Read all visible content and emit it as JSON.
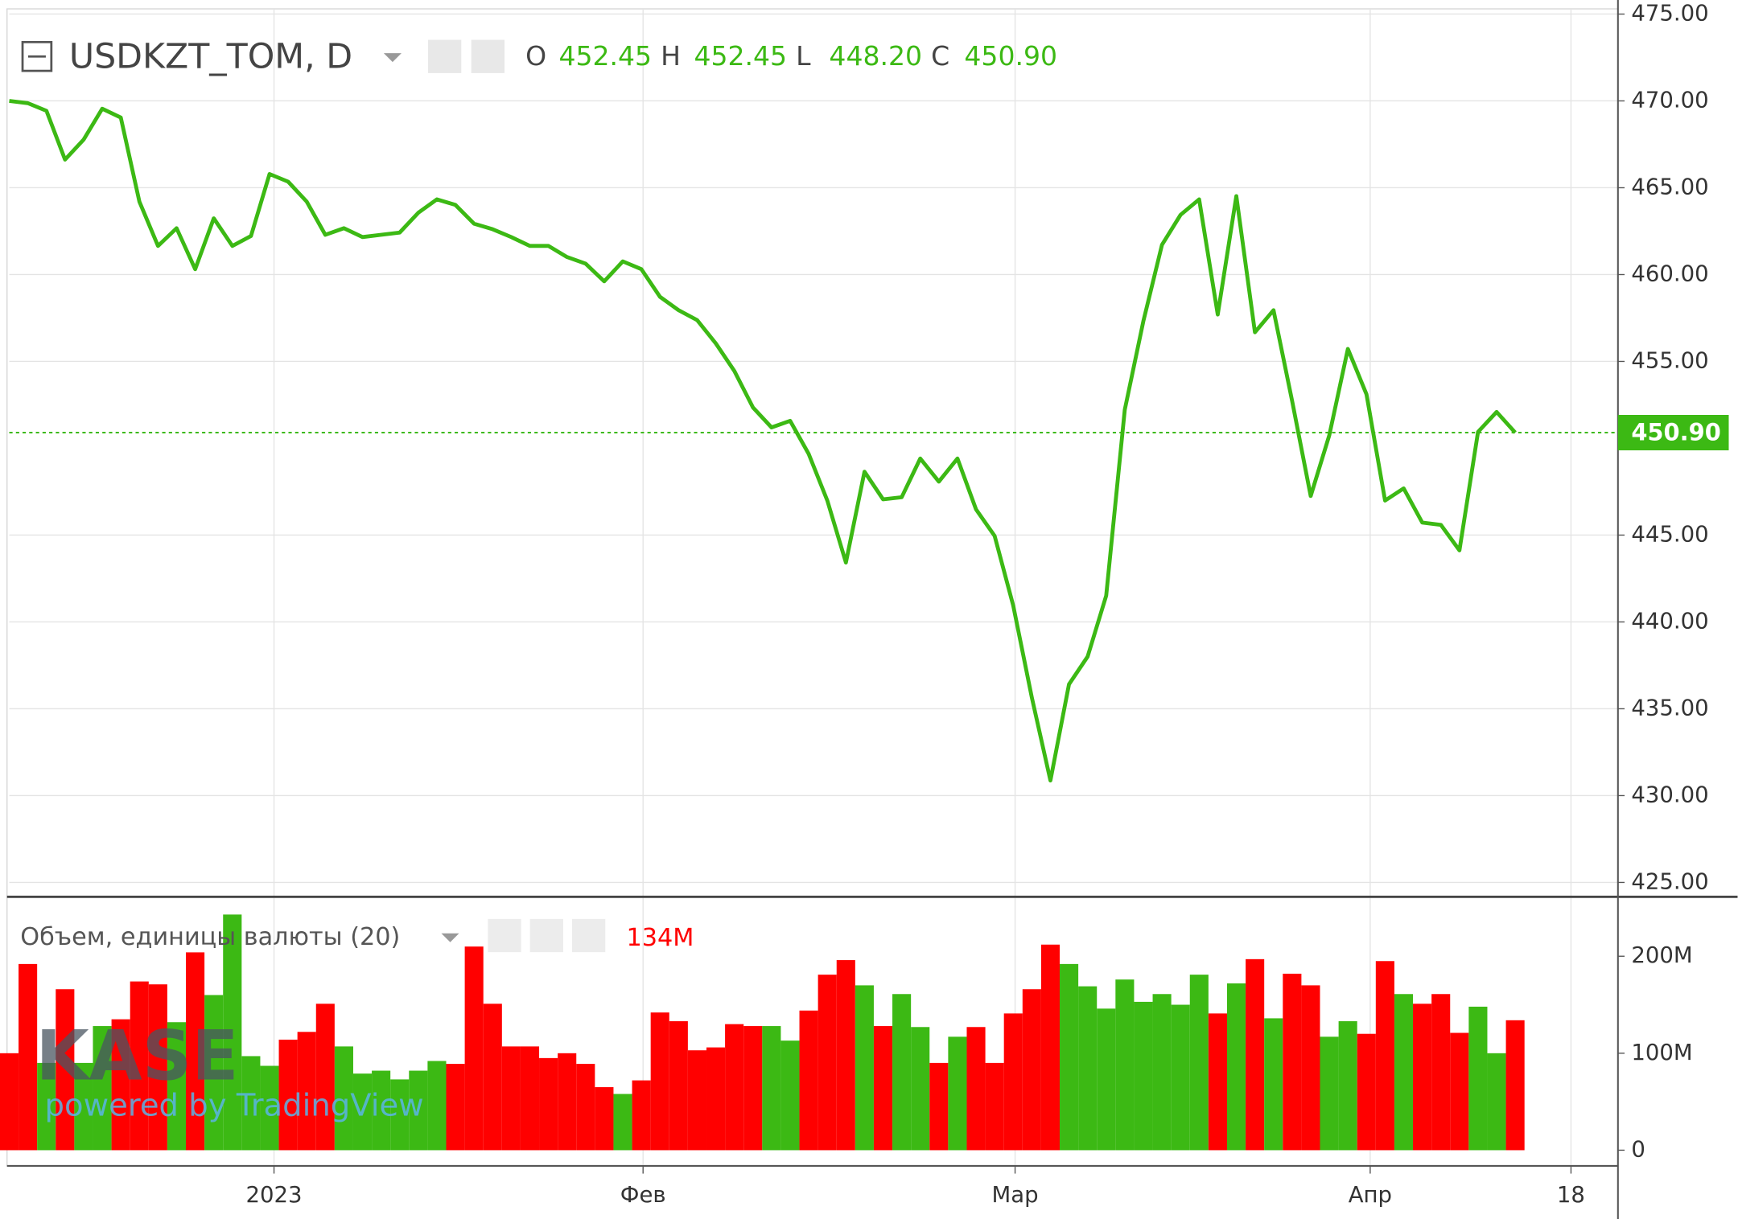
{
  "chart_data": [
    {
      "type": "line",
      "title": "USDKZT_TOM, D",
      "readout": [
        {
          "key": "O",
          "value": "452.45"
        },
        {
          "key": "H",
          "value": "452.45"
        },
        {
          "key": "L",
          "value": "448.20"
        },
        {
          "key": "C",
          "value": "450.90"
        }
      ],
      "last_price_label": "450.90",
      "watermark": [
        "KASE",
        "powered by TradingView"
      ],
      "series": [
        {
          "name": "USDKZT_TOM",
          "color": "#3cb914",
          "values": [
            470.0,
            469.87,
            469.43,
            466.62,
            467.77,
            469.55,
            469.04,
            464.2,
            461.65,
            462.67,
            460.31,
            463.24,
            461.65,
            462.22,
            465.79,
            465.35,
            464.2,
            462.29,
            462.67,
            462.16,
            462.29,
            462.42,
            463.56,
            464.33,
            464.01,
            462.93,
            462.61,
            462.16,
            461.65,
            461.65,
            461.01,
            460.63,
            459.61,
            460.76,
            460.31,
            458.72,
            457.95,
            457.38,
            456.04,
            454.45,
            452.35,
            451.2,
            451.58,
            449.67,
            446.99,
            443.42,
            448.65,
            447.06,
            447.18,
            449.41,
            448.08,
            449.41,
            446.48,
            444.95,
            440.94,
            435.65,
            430.87,
            436.41,
            438.0,
            441.51,
            452.22,
            457.32,
            461.71,
            463.44,
            464.33,
            457.7,
            464.52,
            456.68,
            457.95,
            452.73,
            447.25,
            450.75,
            455.72,
            453.11,
            446.99,
            447.69,
            445.72,
            445.59,
            444.12,
            450.94,
            452.09,
            450.9
          ]
        }
      ],
      "ylim": [
        424.3,
        475.3
      ],
      "yticks": [
        {
          "value": 425,
          "label": "425.00"
        },
        {
          "value": 430,
          "label": "430.00"
        },
        {
          "value": 435,
          "label": "435.00"
        },
        {
          "value": 440,
          "label": "440.00"
        },
        {
          "value": 445,
          "label": "445.00"
        },
        {
          "value": 455,
          "label": "455.00"
        },
        {
          "value": 460,
          "label": "460.00"
        },
        {
          "value": 465,
          "label": "465.00"
        },
        {
          "value": 470,
          "label": "470.00"
        },
        {
          "value": 475,
          "label": "475.00"
        }
      ],
      "xlim": [
        0,
        86.5
      ],
      "xticks": [
        {
          "value": 14.24,
          "label": "2023"
        },
        {
          "value": 34.09,
          "label": "Фев"
        },
        {
          "value": 54.1,
          "label": "Мар"
        },
        {
          "value": 73.2,
          "label": "Апр"
        },
        {
          "value": 84.0,
          "label": "18"
        }
      ],
      "grid": true
    },
    {
      "type": "bar",
      "title": "Объем, единицы валюты (20)",
      "readout": "134M",
      "values": [
        100000000,
        192000000,
        90000000,
        166000000,
        90000000,
        128000000,
        135000000,
        174000000,
        171000000,
        132000000,
        204000000,
        160000000,
        243000000,
        97000000,
        87000000,
        114000000,
        122000000,
        151000000,
        107000000,
        79000000,
        82000000,
        73000000,
        82000000,
        92000000,
        89000000,
        210000000,
        151000000,
        107000000,
        107000000,
        95000000,
        100000000,
        89000000,
        65000000,
        58000000,
        72000000,
        142000000,
        133000000,
        103000000,
        106000000,
        130000000,
        128000000,
        128000000,
        113000000,
        144000000,
        181000000,
        196000000,
        170000000,
        128000000,
        161000000,
        127000000,
        90000000,
        117000000,
        127000000,
        90000000,
        141000000,
        166000000,
        212000000,
        192000000,
        169000000,
        146000000,
        176000000,
        153000000,
        161000000,
        150000000,
        181000000,
        141000000,
        172000000,
        197000000,
        136000000,
        182000000,
        170000000,
        117000000,
        133000000,
        120000000,
        195000000,
        161000000,
        151000000,
        161000000,
        121000000,
        148000000,
        100000000,
        134000000
      ],
      "colors": [
        "#ff0000",
        "#ff0000",
        "#3cb914",
        "#ff0000",
        "#3cb914",
        "#3cb914",
        "#ff0000",
        "#ff0000",
        "#ff0000",
        "#3cb914",
        "#ff0000",
        "#3cb914",
        "#3cb914",
        "#3cb914",
        "#3cb914",
        "#ff0000",
        "#ff0000",
        "#ff0000",
        "#3cb914",
        "#3cb914",
        "#3cb914",
        "#3cb914",
        "#3cb914",
        "#3cb914",
        "#ff0000",
        "#ff0000",
        "#ff0000",
        "#ff0000",
        "#ff0000",
        "#ff0000",
        "#ff0000",
        "#ff0000",
        "#ff0000",
        "#3cb914",
        "#ff0000",
        "#ff0000",
        "#ff0000",
        "#ff0000",
        "#ff0000",
        "#ff0000",
        "#ff0000",
        "#3cb914",
        "#3cb914",
        "#ff0000",
        "#ff0000",
        "#ff0000",
        "#3cb914",
        "#ff0000",
        "#3cb914",
        "#3cb914",
        "#ff0000",
        "#3cb914",
        "#ff0000",
        "#ff0000",
        "#ff0000",
        "#ff0000",
        "#ff0000",
        "#3cb914",
        "#3cb914",
        "#3cb914",
        "#3cb914",
        "#3cb914",
        "#3cb914",
        "#3cb914",
        "#3cb914",
        "#ff0000",
        "#3cb914",
        "#ff0000",
        "#3cb914",
        "#ff0000",
        "#ff0000",
        "#3cb914",
        "#3cb914",
        "#ff0000",
        "#ff0000",
        "#3cb914",
        "#ff0000",
        "#ff0000",
        "#ff0000",
        "#3cb914",
        "#3cb914",
        "#ff0000"
      ],
      "ylim": [
        -15000000,
        259000000
      ],
      "yticks": [
        0,
        {
          "value": 100000000,
          "label": "100M"
        },
        {
          "value": 200000000,
          "label": "200M"
        }
      ]
    }
  ]
}
